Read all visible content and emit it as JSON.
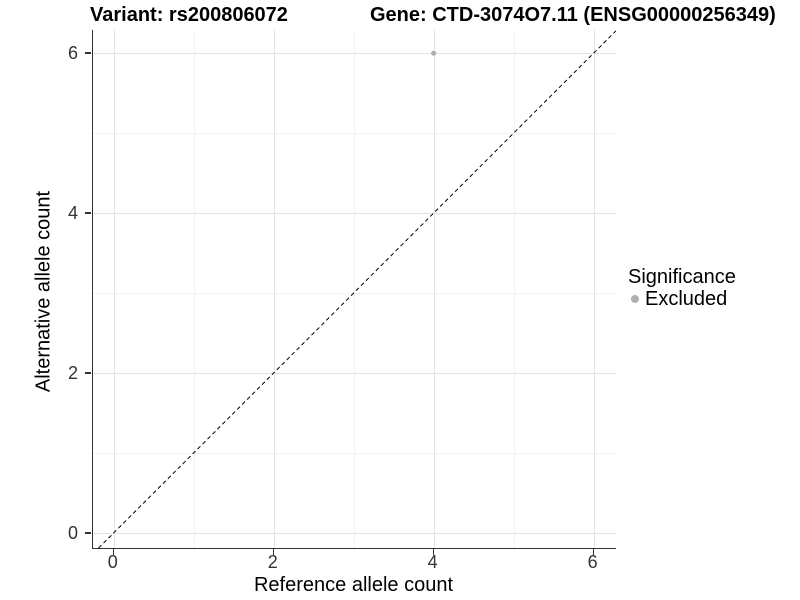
{
  "header": {
    "title_left": "Variant: rs200806072",
    "title_right": "Gene: CTD-3074O7.11 (ENSG00000256349)"
  },
  "legend": {
    "title": "Significance",
    "items": [
      {
        "label": "Excluded",
        "color": "#b0b0b0"
      }
    ]
  },
  "chart_data": {
    "type": "scatter",
    "title": "Variant: rs200806072 | Gene: CTD-3074O7.11 (ENSG00000256349)",
    "xlabel": "Reference allele count",
    "ylabel": "Alternative allele count",
    "xlim": [
      -0.26,
      6.28
    ],
    "ylim": [
      -0.19,
      6.29
    ],
    "x_ticks": [
      0,
      2,
      4,
      6
    ],
    "y_ticks": [
      0,
      2,
      4,
      6
    ],
    "grid": "major+minor",
    "legend_position": "right",
    "series": [
      {
        "name": "Excluded",
        "color": "#b0b0b0",
        "marker": "circle",
        "points": [
          {
            "x": 4,
            "y": 6
          }
        ]
      }
    ],
    "reference_line": {
      "kind": "identity",
      "style": "dashed",
      "color": "#000000"
    }
  },
  "colors": {
    "background": "#ffffff",
    "grid_major": "#e4e4e4",
    "grid_minor": "#f2f2f2",
    "axis_line": "#333333",
    "tick_text": "#333333",
    "title_text": "#000000",
    "point": "#b0b0b0",
    "dashed_line": "#000000"
  }
}
